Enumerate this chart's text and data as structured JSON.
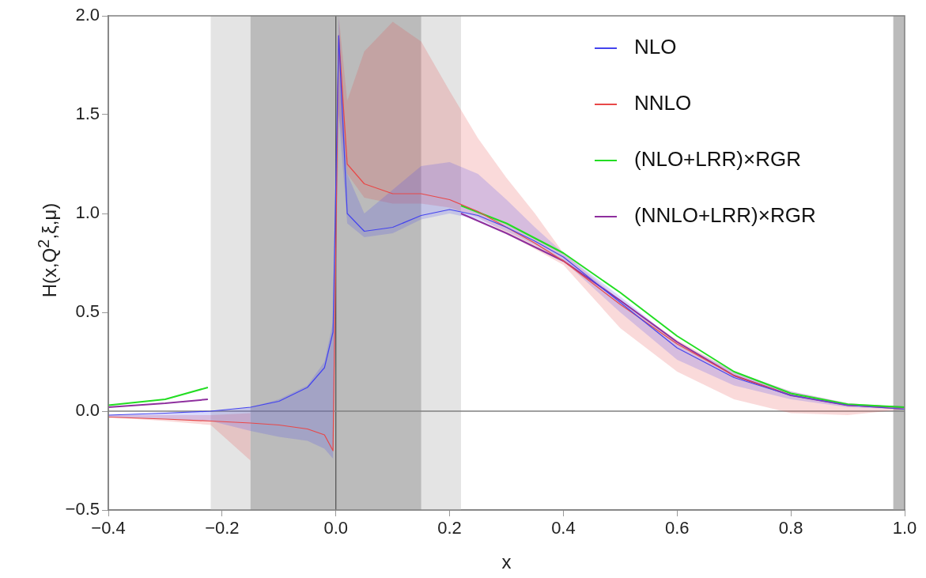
{
  "chart_data": {
    "type": "line",
    "xlabel": "x",
    "ylabel": "H(x,Q$^{2}$,ξ,μ)",
    "xlim": [
      -0.4,
      1.0
    ],
    "ylim": [
      -0.5,
      2.0
    ],
    "xticks": [
      {
        "value": -0.4,
        "label": "−0.4"
      },
      {
        "value": -0.2,
        "label": "−0.2"
      },
      {
        "value": 0,
        "label": "0.0"
      },
      {
        "value": 0.2,
        "label": "0.2"
      },
      {
        "value": 0.4,
        "label": "0.4"
      },
      {
        "value": 0.6,
        "label": "0.6"
      },
      {
        "value": 0.8,
        "label": "0.8"
      },
      {
        "value": 1.0,
        "label": "1.0"
      }
    ],
    "yticks": [
      {
        "value": -0.5,
        "label": "−0.5"
      },
      {
        "value": 0,
        "label": "0.0"
      },
      {
        "value": 0.5,
        "label": "0.5"
      },
      {
        "value": 1.0,
        "label": "1.0"
      },
      {
        "value": 1.5,
        "label": "1.5"
      },
      {
        "value": 2.0,
        "label": "2.0"
      }
    ],
    "grid": false,
    "legend": "top right",
    "marker": "none",
    "line_style": "solid",
    "bands": [
      {
        "axis": "x",
        "from": -0.22,
        "to": 0.22,
        "color": "#e4e4e4"
      },
      {
        "axis": "x",
        "from": -0.15,
        "to": 0.15,
        "color": "#bbbbbb"
      },
      {
        "axis": "x",
        "from": 0.98,
        "to": 1.0,
        "color": "#bbbbbb"
      }
    ],
    "ref_lines": [
      {
        "axis": "y",
        "value": 0,
        "color": "#808080"
      },
      {
        "axis": "x",
        "value": 0,
        "color": "#505050"
      }
    ],
    "series": [
      {
        "name": "NLO",
        "color": "#4444ee",
        "x": [
          -0.4,
          -0.3,
          -0.22,
          -0.15,
          -0.1,
          -0.05,
          -0.02,
          -0.005,
          0.005,
          0.02,
          0.05,
          0.1,
          0.15,
          0.2,
          0.25,
          0.3,
          0.35,
          0.4,
          0.5,
          0.6,
          0.7,
          0.8,
          0.9,
          1.0
        ],
        "values": [
          -0.02,
          -0.01,
          0,
          0.02,
          0.05,
          0.12,
          0.22,
          0.4,
          1.9,
          1.0,
          0.91,
          0.93,
          0.99,
          1.02,
          0.99,
          0.93,
          0.86,
          0.78,
          0.55,
          0.32,
          0.17,
          0.08,
          0.03,
          0.01
        ],
        "lower": [
          -0.03,
          -0.04,
          -0.05,
          -0.1,
          -0.13,
          -0.15,
          -0.19,
          -0.24,
          1.5,
          0.95,
          0.88,
          0.9,
          0.97,
          1.0,
          0.97,
          0.91,
          0.84,
          0.76,
          0.5,
          0.26,
          0.13,
          0.06,
          0.02,
          0.01
        ],
        "upper": [
          -0.02,
          -0.01,
          0,
          0.02,
          0.06,
          0.13,
          0.25,
          0.45,
          2.0,
          1.2,
          1.0,
          1.12,
          1.24,
          1.26,
          1.2,
          1.07,
          0.93,
          0.8,
          0.58,
          0.35,
          0.2,
          0.1,
          0.04,
          0.02
        ]
      },
      {
        "name": "NNLO",
        "color": "#e84848",
        "x": [
          -0.4,
          -0.3,
          -0.22,
          -0.15,
          -0.1,
          -0.05,
          -0.02,
          -0.005,
          0.005,
          0.02,
          0.05,
          0.1,
          0.15,
          0.2,
          0.25,
          0.3,
          0.35,
          0.4,
          0.5,
          0.6,
          0.7,
          0.8,
          0.9,
          1.0
        ],
        "values": [
          -0.03,
          -0.04,
          -0.05,
          -0.06,
          -0.07,
          -0.09,
          -0.12,
          -0.2,
          1.9,
          1.25,
          1.15,
          1.1,
          1.1,
          1.07,
          1.01,
          0.93,
          0.85,
          0.76,
          0.54,
          0.34,
          0.18,
          0.08,
          0.03,
          0.01
        ],
        "lower": [
          -0.03,
          -0.05,
          -0.07,
          -0.25,
          null,
          null,
          null,
          null,
          1.5,
          1.2,
          1.08,
          1.05,
          1.05,
          1.03,
          0.98,
          0.9,
          0.82,
          0.74,
          0.42,
          0.2,
          0.06,
          -0.01,
          -0.02,
          0.01
        ],
        "upper": [
          -0.02,
          -0.02,
          -0.02,
          -0.01,
          null,
          null,
          null,
          null,
          2.0,
          1.57,
          1.82,
          1.97,
          1.87,
          1.62,
          1.38,
          1.18,
          1.0,
          0.8,
          0.56,
          0.36,
          0.2,
          0.1,
          0.04,
          0.02
        ]
      },
      {
        "name": "(NLO+LRR)×RGR",
        "color": "#22dd22",
        "x": [
          -0.4,
          -0.3,
          -0.225,
          0,
          0.22,
          0.3,
          0.4,
          0.5,
          0.6,
          0.7,
          0.8,
          0.9,
          1.0
        ],
        "values": [
          0.03,
          0.06,
          0.12,
          null,
          1.04,
          0.95,
          0.8,
          0.6,
          0.38,
          0.2,
          0.09,
          0.035,
          0.02
        ]
      },
      {
        "name": "(NNLO+LRR)×RGR",
        "color": "#8e2f9e",
        "x": [
          -0.4,
          -0.3,
          -0.225,
          0,
          0.22,
          0.3,
          0.4,
          0.5,
          0.6,
          0.7,
          0.8,
          0.9,
          1.0
        ],
        "values": [
          0.02,
          0.04,
          0.06,
          null,
          1.0,
          0.9,
          0.76,
          0.56,
          0.35,
          0.18,
          0.08,
          0.03,
          0.02
        ]
      }
    ]
  }
}
